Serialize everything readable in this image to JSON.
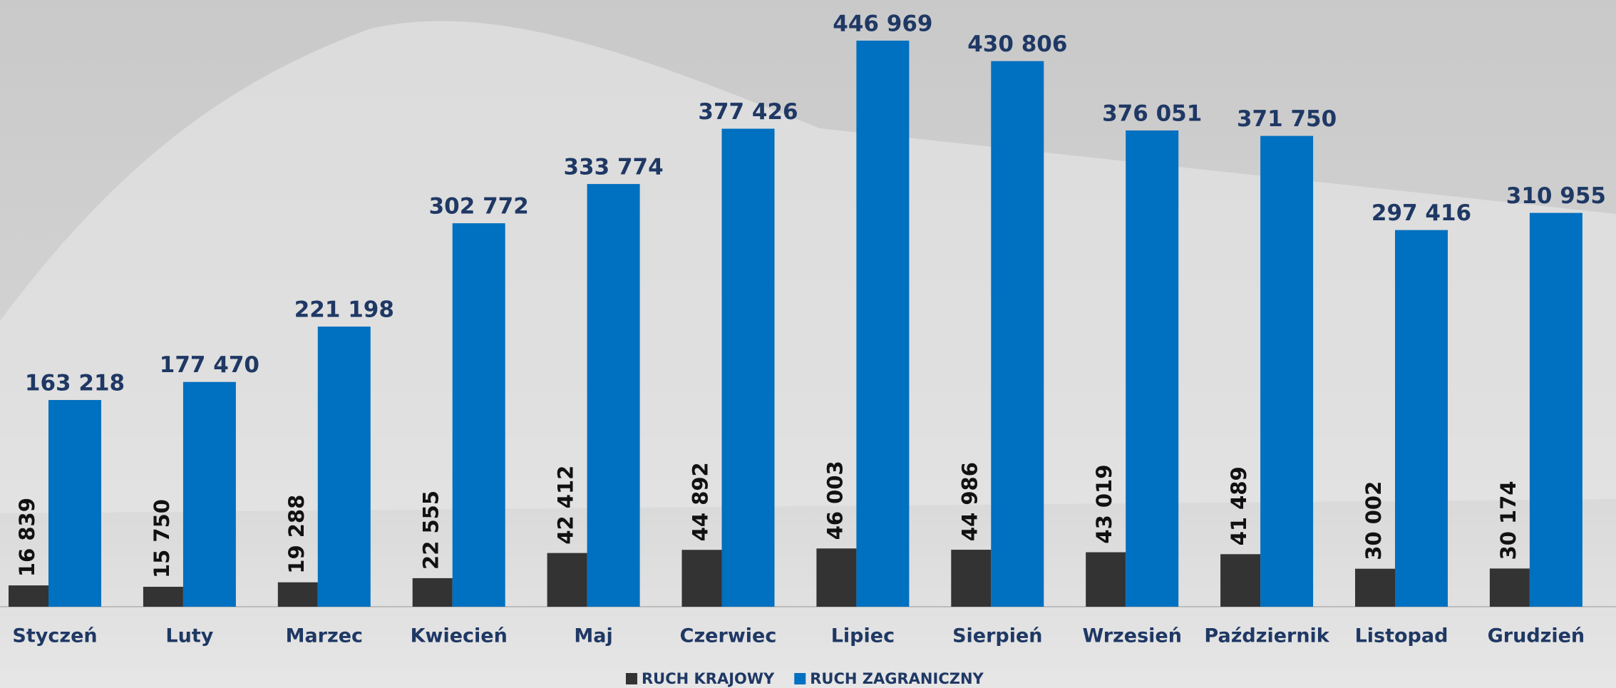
{
  "chart_data": {
    "type": "bar",
    "categories": [
      "Styczeń",
      "Luty",
      "Marzec",
      "Kwiecień",
      "Maj",
      "Czerwiec",
      "Lipiec",
      "Sierpień",
      "Wrzesień",
      "Październik",
      "Listopad",
      "Grudzień"
    ],
    "series": [
      {
        "name": "RUCH KRAJOWY",
        "color": "#333333",
        "values": [
          16839,
          15750,
          19288,
          22555,
          42412,
          44892,
          46003,
          44986,
          43019,
          41489,
          30002,
          30174
        ],
        "value_labels": [
          "16 839",
          "15 750",
          "19 288",
          "22 555",
          "42 412",
          "44 892",
          "46 003",
          "44 986",
          "43 019",
          "41 489",
          "30 002",
          "30 174"
        ]
      },
      {
        "name": "RUCH ZAGRANICZNY",
        "color": "#0070c0",
        "values": [
          163218,
          177470,
          221198,
          302772,
          333774,
          377426,
          446969,
          430806,
          376051,
          371750,
          297416,
          310955
        ],
        "value_labels": [
          "163 218",
          "177 470",
          "221 198",
          "302 772",
          "333 774",
          "377 426",
          "446 969",
          "430 806",
          "376 051",
          "371 750",
          "297 416",
          "310 955"
        ]
      }
    ]
  }
}
